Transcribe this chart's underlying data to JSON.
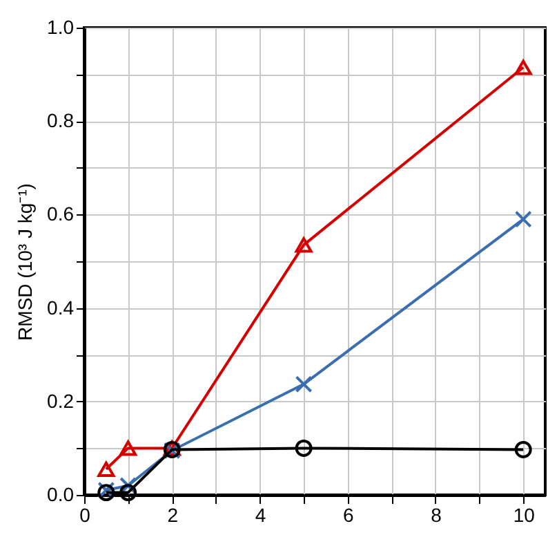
{
  "chart_data": {
    "type": "line",
    "ylabel": "RMSD (10³ J kg⁻¹)",
    "x": [
      0.5,
      1,
      2,
      5,
      10
    ],
    "series": [
      {
        "color": "#d40000",
        "marker": "triangle",
        "values": [
          0.055,
          0.1,
          0.1,
          0.535,
          0.915
        ]
      },
      {
        "color": "#3a6eb0",
        "marker": "cross",
        "values": [
          0.01,
          0.02,
          0.095,
          0.237,
          0.59
        ]
      },
      {
        "color": "#000000",
        "marker": "circle",
        "values": [
          0.005,
          0.005,
          0.097,
          0.1,
          0.097
        ]
      }
    ],
    "xlim": [
      0,
      10.5
    ],
    "ylim": [
      0,
      1.0
    ],
    "xticks": [
      0,
      {
        "value": 1,
        "label": null
      },
      2,
      {
        "value": 3,
        "label": null
      },
      4,
      {
        "value": 5,
        "label": null
      },
      6,
      {
        "value": 7,
        "label": null
      },
      8,
      {
        "value": 9,
        "label": null
      },
      10
    ],
    "yticks": [
      {
        "value": 0,
        "label": "0.0"
      },
      {
        "value": 0.1,
        "label": null
      },
      {
        "value": 0.2,
        "label": "0.2"
      },
      {
        "value": 0.3,
        "label": null
      },
      {
        "value": 0.4,
        "label": "0.4"
      },
      {
        "value": 0.5,
        "label": null
      },
      {
        "value": 0.6,
        "label": "0.6"
      },
      {
        "value": 0.7,
        "label": null
      },
      {
        "value": 0.8,
        "label": "0.8"
      },
      {
        "value": 0.9,
        "label": null
      },
      {
        "value": 1.0,
        "label": "1.0"
      }
    ],
    "grid": true,
    "line_style": "solid"
  }
}
